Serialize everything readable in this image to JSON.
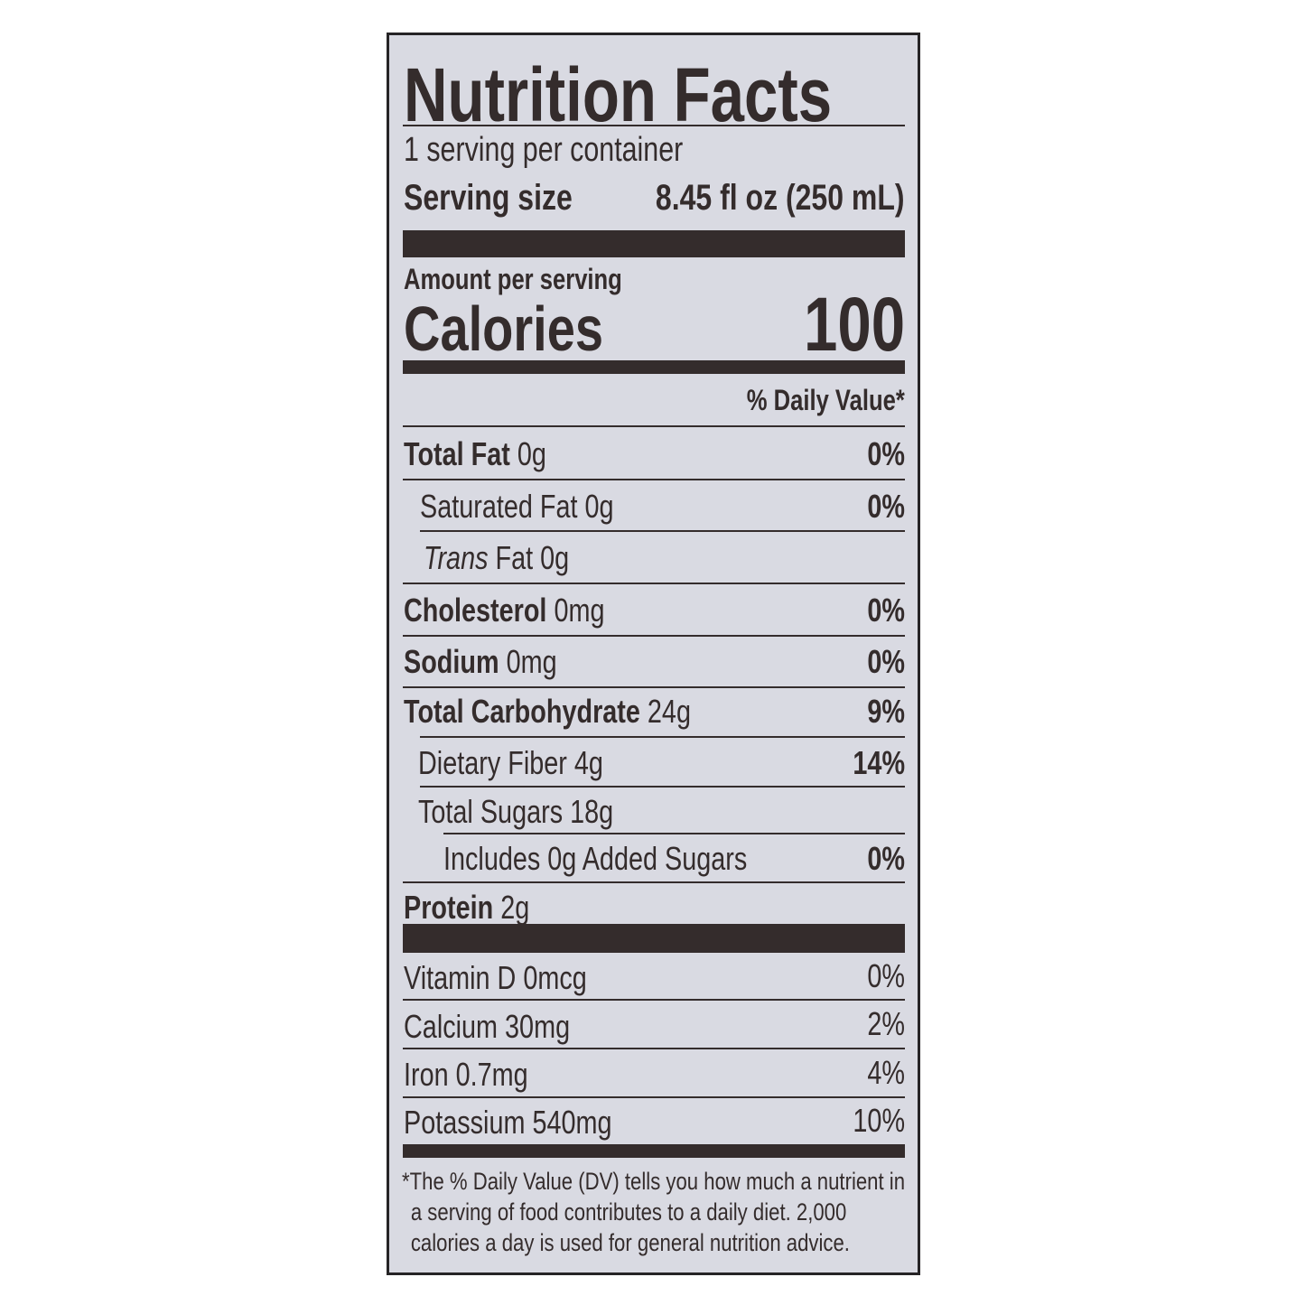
{
  "title": "Nutrition Facts",
  "servings_per_container": "1 serving per container",
  "serving_size_label": "Serving size",
  "serving_size_value": "8.45 fl oz (250 mL)",
  "amount_per_serving": "Amount per serving",
  "calories_label": "Calories",
  "calories_value": "100",
  "daily_value_header": "% Daily Value*",
  "nutrients": [
    {
      "name": "Total Fat",
      "amount": "0g",
      "dv": "0%"
    },
    {
      "name": "Saturated Fat",
      "amount": "0g",
      "dv": "0%"
    },
    {
      "name": "Trans",
      "name_suffix": "Fat",
      "amount": "0g",
      "dv": ""
    },
    {
      "name": "Cholesterol",
      "amount": "0mg",
      "dv": "0%"
    },
    {
      "name": "Sodium",
      "amount": "0mg",
      "dv": "0%"
    },
    {
      "name": "Total Carbohydrate",
      "amount": "24g",
      "dv": "9%"
    },
    {
      "name": "Dietary Fiber",
      "amount": "4g",
      "dv": "14%"
    },
    {
      "name": "Total Sugars",
      "amount": "18g",
      "dv": ""
    },
    {
      "name": "Includes 0g Added Sugars",
      "amount": "",
      "dv": "0%"
    },
    {
      "name": "Protein",
      "amount": "2g",
      "dv": ""
    }
  ],
  "vitamins": [
    {
      "name": "Vitamin D",
      "amount": "0mcg",
      "dv": "0%"
    },
    {
      "name": "Calcium",
      "amount": "30mg",
      "dv": "2%"
    },
    {
      "name": "Iron",
      "amount": "0.7mg",
      "dv": "4%"
    },
    {
      "name": "Potassium",
      "amount": "540mg",
      "dv": "10%"
    }
  ],
  "footnote": "*The % Daily Value (DV) tells you how much a nutrient in a serving of food contributes to a daily diet. 2,000 calories a day is used for general nutrition advice.",
  "colors": {
    "ink": "#342c2c",
    "background": "#d9dae2",
    "border": "#262426"
  }
}
